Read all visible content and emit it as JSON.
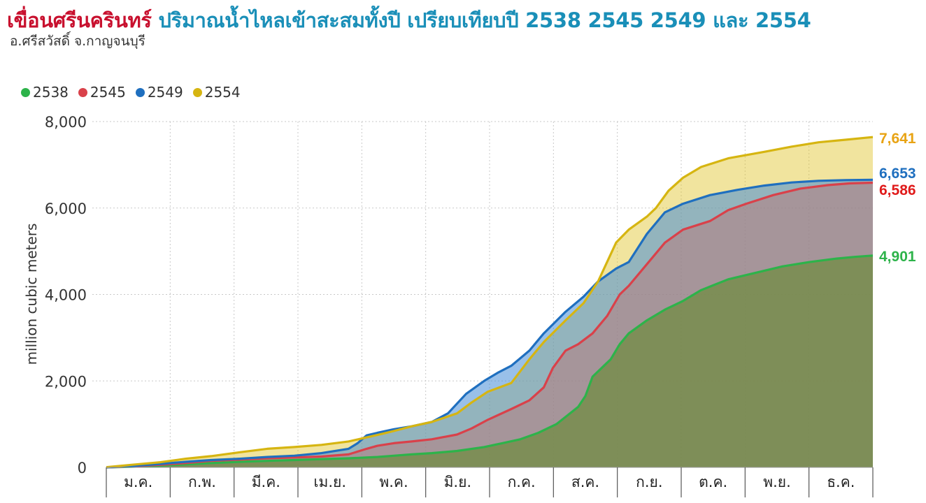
{
  "title": {
    "main": "เขื่อนศรีนครินทร์",
    "rest": "ปริมาณน้ำไหลเข้าสะสมทั้งปี เปรียบเทียบปี 2538 2545 2549 และ 2554",
    "subtitle": "อ.ศรีสวัสดิ์ จ.กาญจนบุรี"
  },
  "colors": {
    "2538": "#2db34a",
    "2545": "#d9414a",
    "2549": "#1f6fbf",
    "2554": "#d6b511",
    "label_2554": "#e8a313",
    "label_2549": "#1f6fbf",
    "label_2545": "#e01b1b",
    "label_2538": "#2db34a"
  },
  "chart_data": {
    "type": "area",
    "ylabel": "million cubic meters",
    "xlabel": "",
    "ylim": [
      0,
      8000
    ],
    "yticks": [
      0,
      2000,
      4000,
      6000,
      8000
    ],
    "ytick_labels": [
      "0",
      "2,000",
      "4,000",
      "6,000",
      "8,000"
    ],
    "months": [
      "ม.ค.",
      "ก.พ.",
      "มี.ค.",
      "เม.ย.",
      "พ.ค.",
      "มิ.ย.",
      "ก.ค.",
      "ส.ค.",
      "ก.ย.",
      "ต.ค.",
      "พ.ย.",
      "ธ.ค."
    ],
    "x_unit": "day of year",
    "legend": [
      "2538",
      "2545",
      "2549",
      "2554"
    ],
    "legend_position": "top-left",
    "grid": "dotted vertical at month boundaries",
    "series": [
      {
        "name": "2554",
        "end_label": "7,641",
        "points": [
          [
            1,
            5
          ],
          [
            15,
            60
          ],
          [
            31,
            120
          ],
          [
            45,
            200
          ],
          [
            59,
            260
          ],
          [
            75,
            350
          ],
          [
            90,
            430
          ],
          [
            105,
            470
          ],
          [
            120,
            520
          ],
          [
            135,
            600
          ],
          [
            151,
            750
          ],
          [
            160,
            840
          ],
          [
            170,
            950
          ],
          [
            181,
            1050
          ],
          [
            195,
            1250
          ],
          [
            203,
            1500
          ],
          [
            212,
            1750
          ],
          [
            225,
            1950
          ],
          [
            235,
            2500
          ],
          [
            243,
            2900
          ],
          [
            255,
            3400
          ],
          [
            265,
            3800
          ],
          [
            273,
            4300
          ],
          [
            283,
            5200
          ],
          [
            290,
            5500
          ],
          [
            300,
            5800
          ],
          [
            305,
            6000
          ],
          [
            312,
            6400
          ],
          [
            320,
            6700
          ],
          [
            330,
            6950
          ],
          [
            345,
            7150
          ],
          [
            365,
            7300
          ],
          [
            380,
            7420
          ],
          [
            395,
            7520
          ],
          [
            410,
            7580
          ],
          [
            425,
            7641
          ]
        ]
      },
      {
        "name": "2549",
        "end_label": "6,653",
        "points": [
          [
            1,
            0
          ],
          [
            15,
            30
          ],
          [
            31,
            80
          ],
          [
            45,
            130
          ],
          [
            59,
            170
          ],
          [
            75,
            200
          ],
          [
            90,
            240
          ],
          [
            105,
            270
          ],
          [
            120,
            330
          ],
          [
            135,
            430
          ],
          [
            140,
            560
          ],
          [
            145,
            740
          ],
          [
            151,
            800
          ],
          [
            160,
            880
          ],
          [
            170,
            950
          ],
          [
            181,
            1050
          ],
          [
            190,
            1250
          ],
          [
            200,
            1700
          ],
          [
            210,
            2000
          ],
          [
            218,
            2200
          ],
          [
            225,
            2350
          ],
          [
            235,
            2700
          ],
          [
            243,
            3100
          ],
          [
            255,
            3600
          ],
          [
            265,
            3950
          ],
          [
            273,
            4300
          ],
          [
            283,
            4600
          ],
          [
            290,
            4750
          ],
          [
            300,
            5400
          ],
          [
            310,
            5900
          ],
          [
            320,
            6100
          ],
          [
            335,
            6300
          ],
          [
            350,
            6420
          ],
          [
            365,
            6520
          ],
          [
            380,
            6590
          ],
          [
            395,
            6630
          ],
          [
            410,
            6645
          ],
          [
            425,
            6653
          ]
        ]
      },
      {
        "name": "2545",
        "end_label": "6,586",
        "points": [
          [
            1,
            0
          ],
          [
            15,
            25
          ],
          [
            31,
            60
          ],
          [
            45,
            100
          ],
          [
            59,
            150
          ],
          [
            75,
            180
          ],
          [
            90,
            210
          ],
          [
            105,
            230
          ],
          [
            120,
            250
          ],
          [
            135,
            300
          ],
          [
            145,
            430
          ],
          [
            151,
            500
          ],
          [
            160,
            560
          ],
          [
            170,
            600
          ],
          [
            181,
            650
          ],
          [
            195,
            760
          ],
          [
            203,
            900
          ],
          [
            212,
            1100
          ],
          [
            225,
            1350
          ],
          [
            235,
            1550
          ],
          [
            243,
            1850
          ],
          [
            248,
            2300
          ],
          [
            255,
            2700
          ],
          [
            262,
            2850
          ],
          [
            270,
            3100
          ],
          [
            278,
            3500
          ],
          [
            285,
            4000
          ],
          [
            290,
            4200
          ],
          [
            300,
            4700
          ],
          [
            310,
            5200
          ],
          [
            320,
            5500
          ],
          [
            335,
            5700
          ],
          [
            345,
            5950
          ],
          [
            355,
            6100
          ],
          [
            370,
            6300
          ],
          [
            385,
            6450
          ],
          [
            400,
            6530
          ],
          [
            412,
            6570
          ],
          [
            425,
            6586
          ]
        ]
      },
      {
        "name": "2538",
        "end_label": "4,901",
        "points": [
          [
            1,
            0
          ],
          [
            15,
            15
          ],
          [
            31,
            40
          ],
          [
            45,
            70
          ],
          [
            59,
            100
          ],
          [
            75,
            130
          ],
          [
            90,
            150
          ],
          [
            105,
            170
          ],
          [
            120,
            190
          ],
          [
            135,
            210
          ],
          [
            151,
            240
          ],
          [
            160,
            270
          ],
          [
            170,
            300
          ],
          [
            181,
            330
          ],
          [
            195,
            380
          ],
          [
            210,
            470
          ],
          [
            220,
            560
          ],
          [
            230,
            650
          ],
          [
            240,
            800
          ],
          [
            250,
            1000
          ],
          [
            256,
            1200
          ],
          [
            262,
            1400
          ],
          [
            266,
            1650
          ],
          [
            270,
            2100
          ],
          [
            275,
            2300
          ],
          [
            280,
            2500
          ],
          [
            285,
            2850
          ],
          [
            290,
            3100
          ],
          [
            300,
            3400
          ],
          [
            310,
            3650
          ],
          [
            320,
            3850
          ],
          [
            330,
            4100
          ],
          [
            345,
            4350
          ],
          [
            360,
            4500
          ],
          [
            375,
            4650
          ],
          [
            390,
            4750
          ],
          [
            405,
            4830
          ],
          [
            415,
            4870
          ],
          [
            425,
            4901
          ]
        ]
      }
    ]
  }
}
